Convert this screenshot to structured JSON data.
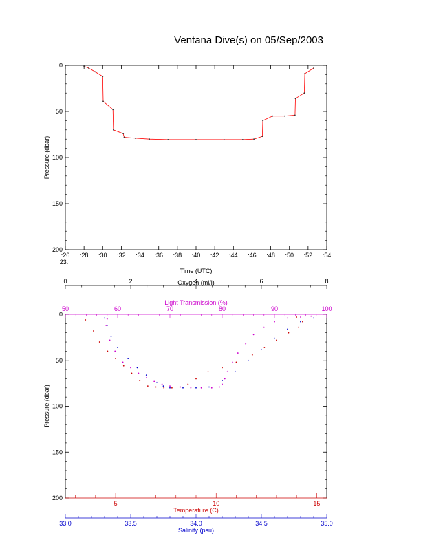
{
  "title": "Ventana Dive(s) on 05/Sep/2003",
  "colors": {
    "axis": "#000000",
    "pressure_time": "#ff0000",
    "light_transmission": "#cc00cc",
    "temperature": "#cc0000",
    "salinity": "#0000cc",
    "oxygen": "#000000"
  },
  "chart_data": [
    {
      "type": "line",
      "title": "Ventana Dive(s) on 05/Sep/2003",
      "xlabel": "Time (UTC)",
      "ylabel": "Pressure (dbar)",
      "x_unit": "minutes past 23:00",
      "x_prefix": "23:",
      "xlim": [
        26,
        54
      ],
      "ylim": [
        200,
        0
      ],
      "x_ticks": [
        26,
        28,
        30,
        32,
        34,
        36,
        38,
        40,
        42,
        44,
        46,
        48,
        50,
        52,
        54
      ],
      "x_tick_labels": [
        ":26",
        ":28",
        ":30",
        ":32",
        ":34",
        ":36",
        ":38",
        ":40",
        ":42",
        ":44",
        ":46",
        ":48",
        ":50",
        ":52",
        ":54"
      ],
      "y_ticks": [
        0,
        50,
        100,
        150,
        200
      ],
      "y_tick_labels": [
        "0",
        "50",
        "100",
        "150",
        "200"
      ],
      "series": [
        {
          "x": [
            28.0,
            28.5,
            29.2,
            30.0,
            30.05,
            31.1,
            31.15,
            32.2,
            32.3,
            33.5,
            35.0,
            37.0,
            40.0,
            43.0,
            45.0,
            46.2,
            47.1,
            47.15,
            48.2,
            49.5,
            50.6,
            50.65,
            51.6,
            51.65,
            52.6
          ],
          "y": [
            1,
            3,
            7,
            12,
            39,
            48,
            70,
            74,
            78,
            79,
            80,
            80.5,
            80.5,
            80.5,
            80.5,
            80,
            77,
            60,
            55,
            55,
            54,
            36,
            30,
            9,
            3
          ]
        }
      ]
    },
    {
      "type": "scatter",
      "ylabel": "Pressure (dbar)",
      "ylim": [
        200,
        0
      ],
      "y_ticks": [
        0,
        50,
        100,
        150,
        200
      ],
      "y_tick_labels": [
        "0",
        "50",
        "100",
        "150",
        "200"
      ],
      "axes": {
        "oxygen": {
          "label": "Oxygen (ml/l)",
          "range": [
            0,
            8
          ],
          "ticks": [
            0,
            2,
            4,
            6,
            8
          ],
          "tick_labels": [
            "0",
            "2",
            "4",
            "6",
            "8"
          ]
        },
        "light_transmission": {
          "label": "Light Transmission (%)",
          "range": [
            50,
            100
          ],
          "ticks": [
            50,
            60,
            70,
            80,
            90,
            100
          ],
          "tick_labels": [
            "50",
            "60",
            "70",
            "80",
            "90",
            "100"
          ]
        },
        "temperature": {
          "label": "Temperature (C)",
          "range": [
            2.5,
            15.5
          ],
          "ticks": [
            5,
            10,
            15
          ],
          "tick_labels": [
            "5",
            "10",
            "15"
          ]
        },
        "salinity": {
          "label": "Salinity (psu)",
          "range": [
            33.0,
            35.0
          ],
          "ticks": [
            33.0,
            33.5,
            34.0,
            34.5,
            35.0
          ],
          "tick_labels": [
            "33.0",
            "33.5",
            "34.0",
            "34.5",
            "35.0"
          ]
        }
      },
      "series": [
        {
          "axis": "light_transmission",
          "x": [
            58,
            57.8,
            58.5,
            59.5,
            61,
            62.5,
            64,
            65.5,
            67,
            68.5,
            70,
            72,
            74,
            76,
            78,
            79.5,
            80,
            80.5,
            81,
            82,
            83,
            84.5,
            86,
            88,
            90,
            92.5,
            95,
            97
          ],
          "y": [
            5,
            12,
            28,
            40,
            52,
            58,
            64,
            69,
            73,
            76,
            78,
            79,
            80,
            80,
            80,
            79,
            76,
            70,
            62,
            52,
            42,
            32,
            22,
            14,
            8,
            4,
            3,
            2
          ]
        },
        {
          "axis": "temperature",
          "x": [
            14.0,
            14.3,
            14.1,
            13.6,
            13.0,
            12.4,
            11.8,
            11.0,
            10.3,
            9.6,
            9.0,
            8.6,
            8.2,
            7.8,
            7.4,
            7.0,
            6.6,
            6.2,
            5.8,
            5.4,
            5.0,
            4.6,
            4.2,
            3.9,
            3.5
          ],
          "y": [
            3,
            8,
            14,
            20,
            28,
            36,
            44,
            52,
            58,
            62,
            70,
            76,
            79,
            80,
            80,
            79,
            78,
            72,
            64,
            56,
            48,
            40,
            30,
            18,
            6
          ]
        },
        {
          "axis": "salinity",
          "x": [
            33.3,
            33.32,
            33.35,
            33.4,
            33.48,
            33.55,
            33.62,
            33.7,
            33.75,
            33.8,
            33.9,
            34.0,
            34.1,
            34.2,
            34.3,
            34.4,
            34.5,
            34.6,
            34.7,
            34.8,
            34.9
          ],
          "y": [
            4,
            12,
            24,
            36,
            48,
            58,
            66,
            74,
            78,
            80,
            80,
            80,
            79,
            72,
            62,
            50,
            38,
            26,
            16,
            8,
            4
          ]
        }
      ]
    }
  ]
}
